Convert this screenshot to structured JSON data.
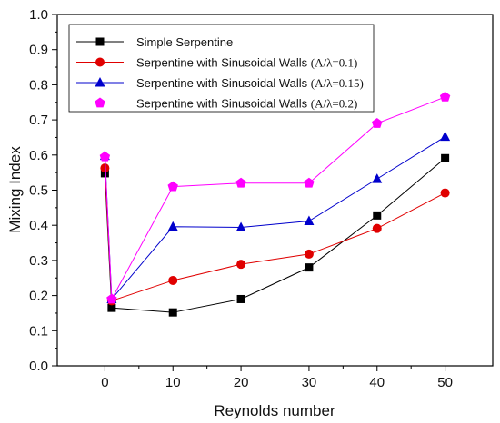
{
  "chart_data": {
    "type": "line",
    "xlabel": "Reynolds number",
    "ylabel": "Mixing Index",
    "x": [
      0,
      1,
      10,
      20,
      30,
      40,
      50
    ],
    "xlim": [
      -7,
      57
    ],
    "ylim": [
      0.0,
      1.0
    ],
    "xticks": [
      0,
      10,
      20,
      30,
      40,
      50
    ],
    "xtick_labels": [
      "0",
      "10",
      "20",
      "30",
      "40",
      "50"
    ],
    "yticks": [
      0.0,
      0.1,
      0.2,
      0.3,
      0.4,
      0.5,
      0.6,
      0.7,
      0.8,
      0.9,
      1.0
    ],
    "ytick_labels": [
      "0.0",
      "0.1",
      "0.2",
      "0.3",
      "0.4",
      "0.5",
      "0.6",
      "0.7",
      "0.8",
      "0.9",
      "1.0"
    ],
    "grid": false,
    "legend_position": "top",
    "series": [
      {
        "name": "Simple Serpentine",
        "name_main": "Simple Serpentine",
        "name_param": "",
        "color": "#000000",
        "marker": "square",
        "values": [
          0.548,
          0.165,
          0.152,
          0.19,
          0.28,
          0.428,
          0.591
        ]
      },
      {
        "name": "Serpentine with Sinusoidal Walls (A/λ=0.1)",
        "name_main": "Serpentine with Sinusoidal Walls ",
        "name_param": "(A/λ=0.1)",
        "color": "#e00000",
        "marker": "circle",
        "values": [
          0.563,
          0.185,
          0.243,
          0.289,
          0.318,
          0.391,
          0.492
        ]
      },
      {
        "name": "Serpentine with Sinusoidal Walls (A/λ=0.15)",
        "name_main": "Serpentine with Sinusoidal Walls ",
        "name_param": "(A/λ=0.15)",
        "color": "#0000cc",
        "marker": "triangle",
        "values": [
          0.598,
          0.19,
          0.396,
          0.394,
          0.412,
          0.532,
          0.652
        ]
      },
      {
        "name": "Serpentine with Sinusoidal Walls (A/λ=0.2)",
        "name_main": "Serpentine with Sinusoidal Walls ",
        "name_param": "(A/λ=0.2)",
        "color": "#ff00ff",
        "marker": "pentagon",
        "values": [
          0.595,
          0.19,
          0.51,
          0.52,
          0.52,
          0.69,
          0.765
        ]
      }
    ]
  }
}
